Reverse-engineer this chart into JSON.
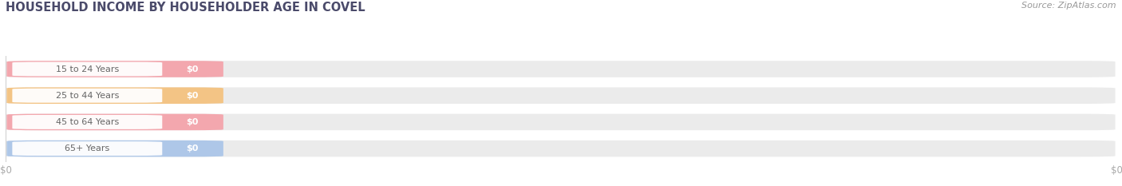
{
  "title": "HOUSEHOLD INCOME BY HOUSEHOLDER AGE IN COVEL",
  "source": "Source: ZipAtlas.com",
  "categories": [
    "15 to 24 Years",
    "25 to 44 Years",
    "45 to 64 Years",
    "65+ Years"
  ],
  "values": [
    0,
    0,
    0,
    0
  ],
  "bar_colors": [
    "#f4a0a8",
    "#f5c07a",
    "#f4a0a8",
    "#a8c4e8"
  ],
  "bar_bg_color": "#ebebeb",
  "title_color": "#4a4a6a",
  "source_color": "#999999",
  "tick_label_color": "#aaaaaa",
  "background_color": "#ffffff",
  "figsize": [
    14.06,
    2.33
  ],
  "dpi": 100
}
